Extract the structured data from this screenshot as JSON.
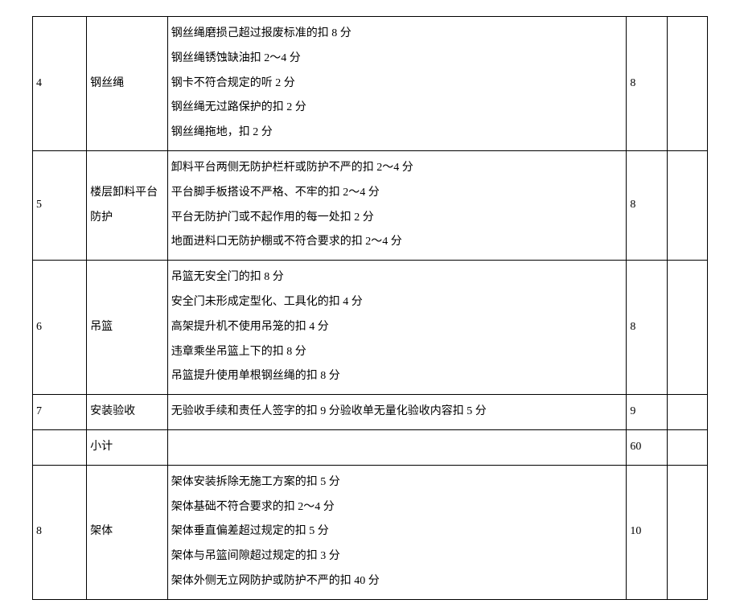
{
  "rows": [
    {
      "num": "4",
      "name": "钢丝绳",
      "lines": [
        "钢丝绳磨损己超过报废标准的扣 8 分",
        "钢丝绳锈蚀缺油扣 2～4 分",
        "钢卡不符合规定的听 2 分",
        "钢丝绳无过路保护的扣 2 分",
        "钢丝绳拖地，扣 2 分"
      ],
      "score": "8"
    },
    {
      "num": "5",
      "name": "楼层卸料平台防护",
      "lines": [
        "卸料平台两侧无防护栏杆或防护不严的扣 2～4 分",
        "平台脚手板搭设不严格、不牢的扣 2～4 分",
        "平台无防护门或不起作用的每一处扣 2 分",
        "地面进料口无防护棚或不符合要求的扣 2～4 分"
      ],
      "score": "8"
    },
    {
      "num": "6",
      "name": "吊篮",
      "lines": [
        "吊篮无安全门的扣 8 分",
        "安全门未形成定型化、工具化的扣 4 分",
        "高架提升机不使用吊笼的扣 4 分",
        "违章乘坐吊篮上下的扣 8 分",
        "吊篮提升使用单根钢丝绳的扣 8 分"
      ],
      "score": "8"
    },
    {
      "num": "7",
      "name": "安装验收",
      "lines": [
        "无验收手续和责任人签字的扣 9 分验收单无量化验收内容扣 5 分"
      ],
      "score": "9"
    },
    {
      "num": "",
      "name": "小计",
      "lines": [
        ""
      ],
      "score": "60"
    },
    {
      "num": "8",
      "name": "架体",
      "lines": [
        "架体安装拆除无施工方案的扣 5 分",
        "架体基础不符合要求的扣 2～4 分",
        "架体垂直偏差超过规定的扣 5 分",
        "架体与吊篮间隙超过规定的扣 3 分",
        "架体外侧无立网防护或防护不严的扣 40 分"
      ],
      "score": "10"
    }
  ]
}
